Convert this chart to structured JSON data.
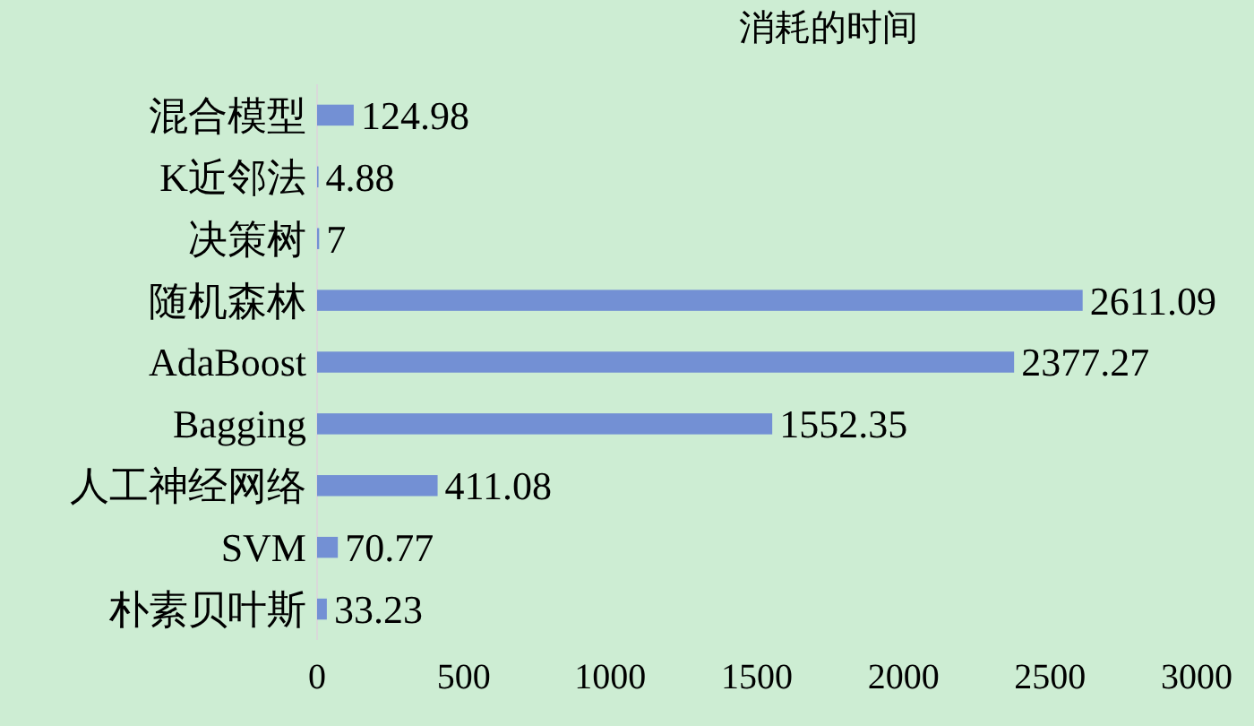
{
  "chart_data": {
    "type": "bar",
    "orientation": "horizontal",
    "title": "消耗的时间",
    "categories": [
      "混合模型",
      "K近邻法",
      "决策树",
      "随机森林",
      "AdaBoost",
      "Bagging",
      "人工神经网络",
      "SVM",
      "朴素贝叶斯"
    ],
    "values": [
      124.98,
      4.88,
      7,
      2611.09,
      2377.27,
      1552.35,
      411.08,
      70.77,
      33.23
    ],
    "color": "#7390d4",
    "xlim": [
      0,
      3000
    ],
    "xticks": [
      0,
      500,
      1000,
      1500,
      2000,
      2500,
      3000
    ],
    "data_labels": true
  }
}
